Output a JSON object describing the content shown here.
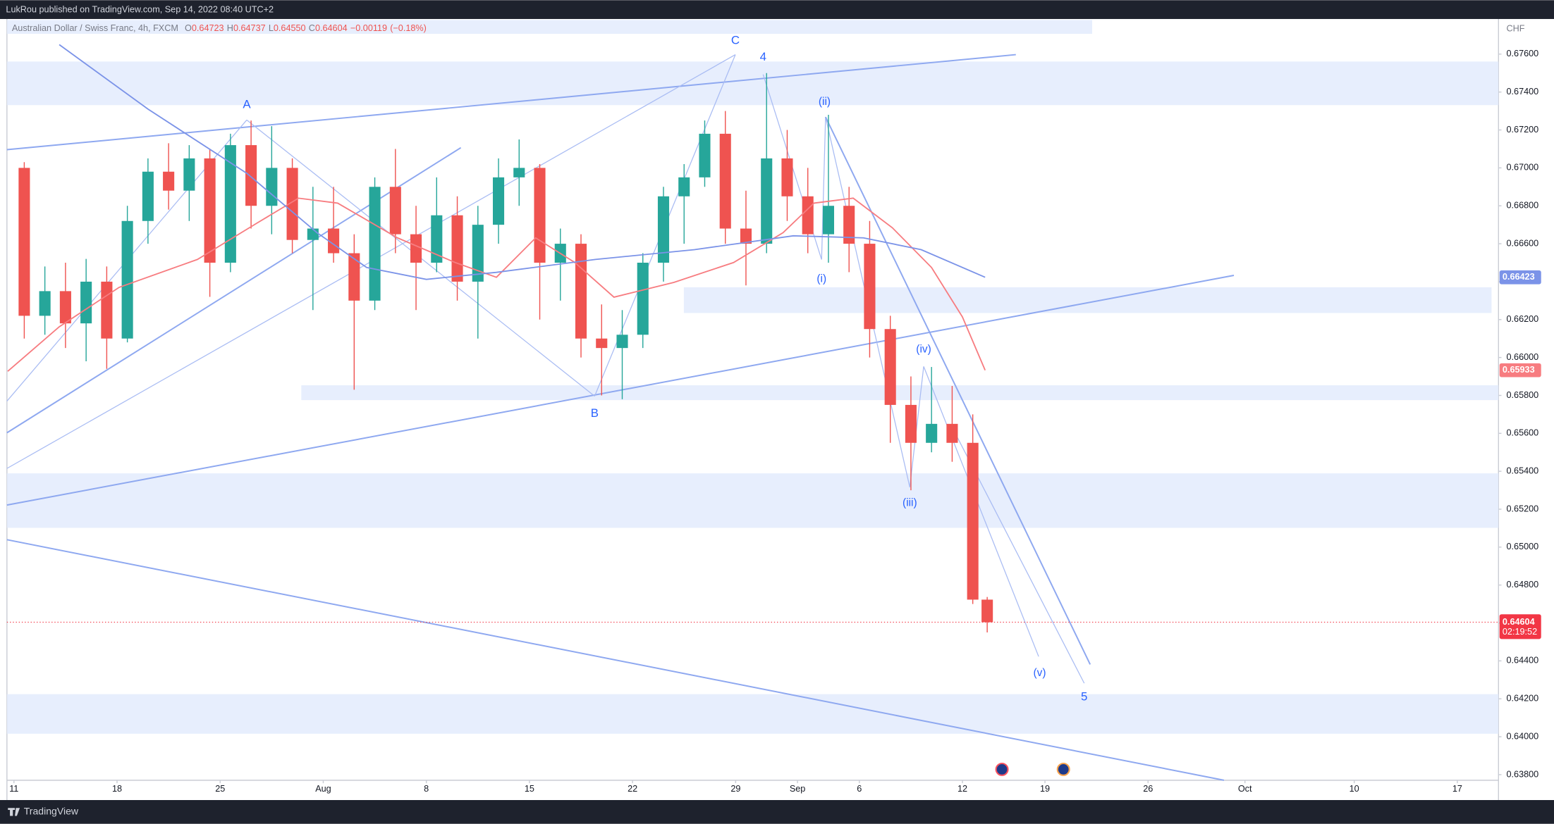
{
  "header": {
    "publisher": "LukRou published on TradingView.com, Sep 14, 2022 08:40 UTC+2",
    "footer": "TradingView"
  },
  "chart_data": {
    "type": "candlestick",
    "title": "Australian Dollar / Swiss Franc, 4h, FXCM",
    "ohlc_legend": [
      {
        "key": "O",
        "value": 0.64723,
        "label": "0.64723"
      },
      {
        "key": "H",
        "value": 0.64737,
        "label": "0.64737"
      },
      {
        "key": "L",
        "value": 0.6455,
        "label": "0.64550"
      },
      {
        "key": "C",
        "value": 0.64604,
        "label": "0.64604"
      }
    ],
    "change": {
      "value": -0.00119,
      "label": "−0.00119"
    },
    "change_pct": {
      "value": -0.18,
      "label": "(−0.18%)"
    },
    "y_unit": "CHF",
    "up_color": "#26a69a",
    "down_color": "#ef5350",
    "x": [
      0.5,
      1.5,
      2.5,
      3.5,
      4.5,
      5.5,
      6.5,
      7.5,
      8.5,
      9.5,
      10.5,
      11.5,
      12.5,
      13.5,
      14.5,
      15.5,
      16.5,
      17.5,
      18.5,
      19.5,
      20.5,
      21.5,
      22.5,
      23.5,
      24.5,
      25.5,
      26.5,
      27.5,
      28.5,
      29.5,
      30.5,
      31.5,
      32.5,
      33.5,
      34.5,
      35.5,
      36.5,
      37.5,
      38.5,
      39.5,
      40.5,
      41.5,
      42.5,
      43.5,
      44.5,
      45.5,
      46.5,
      47.2
    ],
    "open": [
      0.67,
      0.6622,
      0.6635,
      0.6618,
      0.664,
      0.661,
      0.6672,
      0.6698,
      0.6688,
      0.6705,
      0.665,
      0.6712,
      0.668,
      0.67,
      0.6662,
      0.6668,
      0.6655,
      0.663,
      0.669,
      0.6665,
      0.665,
      0.6675,
      0.664,
      0.667,
      0.6695,
      0.67,
      0.665,
      0.666,
      0.661,
      0.6605,
      0.6612,
      0.665,
      0.6685,
      0.6695,
      0.6718,
      0.6668,
      0.666,
      0.6705,
      0.6685,
      0.6665,
      0.668,
      0.666,
      0.6615,
      0.6575,
      0.6555,
      0.6565,
      0.6555,
      0.64723
    ],
    "high": [
      0.6703,
      0.6648,
      0.665,
      0.6652,
      0.6648,
      0.668,
      0.6705,
      0.6713,
      0.6712,
      0.671,
      0.6718,
      0.6725,
      0.6722,
      0.6705,
      0.669,
      0.669,
      0.6665,
      0.6695,
      0.671,
      0.668,
      0.6695,
      0.6685,
      0.668,
      0.6705,
      0.6715,
      0.6702,
      0.6668,
      0.6665,
      0.6628,
      0.6625,
      0.6655,
      0.669,
      0.6702,
      0.6725,
      0.673,
      0.6688,
      0.675,
      0.672,
      0.67,
      0.6728,
      0.669,
      0.6672,
      0.6622,
      0.659,
      0.6595,
      0.6585,
      0.657,
      0.64737
    ],
    "low": [
      0.661,
      0.6612,
      0.6605,
      0.6598,
      0.6594,
      0.6608,
      0.666,
      0.6678,
      0.6672,
      0.6632,
      0.6645,
      0.6668,
      0.6665,
      0.6655,
      0.6625,
      0.665,
      0.6583,
      0.6625,
      0.6655,
      0.6625,
      0.6645,
      0.663,
      0.661,
      0.666,
      0.668,
      0.662,
      0.663,
      0.66,
      0.658,
      0.6578,
      0.6605,
      0.664,
      0.666,
      0.669,
      0.666,
      0.6638,
      0.6655,
      0.6672,
      0.6655,
      0.665,
      0.6645,
      0.66,
      0.6555,
      0.653,
      0.655,
      0.6545,
      0.647,
      0.6455
    ],
    "close": [
      0.6622,
      0.6635,
      0.6618,
      0.664,
      0.661,
      0.6672,
      0.6698,
      0.6688,
      0.6705,
      0.665,
      0.6712,
      0.668,
      0.67,
      0.6662,
      0.6668,
      0.6655,
      0.663,
      0.669,
      0.6665,
      0.665,
      0.6675,
      0.664,
      0.667,
      0.6695,
      0.67,
      0.665,
      0.666,
      0.661,
      0.6605,
      0.6612,
      0.665,
      0.6685,
      0.6695,
      0.6718,
      0.6668,
      0.666,
      0.6705,
      0.6685,
      0.6665,
      0.668,
      0.666,
      0.6615,
      0.6575,
      0.6555,
      0.6565,
      0.6555,
      0.64723,
      0.64604
    ],
    "series": [
      {
        "color": "#f77c80",
        "x": [
          -0.3,
          2.2,
          5.1,
          8.9,
          11.8,
          13.8,
          15.7,
          18.6,
          21.4,
          23.4,
          25.3,
          27.2,
          29.1,
          32.0,
          34.9,
          37.3,
          38.8,
          40.7,
          42.6,
          44.5,
          46.0,
          47.1
        ],
        "values": [
          0.65927,
          0.66162,
          0.6637,
          0.66517,
          0.6671,
          0.6684,
          0.66814,
          0.66631,
          0.66501,
          0.66423,
          0.66631,
          0.66501,
          0.66318,
          0.66396,
          0.66501,
          0.66658,
          0.66814,
          0.6684,
          0.66684,
          0.66475,
          0.66214,
          0.65933
        ],
        "last_label": {
          "value": 0.65933,
          "label": "0.65933"
        }
      },
      {
        "color": "#7b93e8",
        "x": [
          2.2,
          6.5,
          11.3,
          14.7,
          17.1,
          20.0,
          23.4,
          28.2,
          33.0,
          37.8,
          41.2,
          44.0,
          47.1
        ],
        "values": [
          0.6765,
          0.6731,
          0.66971,
          0.66658,
          0.66475,
          0.66412,
          0.66449,
          0.66517,
          0.66569,
          0.66642,
          0.66631,
          0.66569,
          0.66423
        ],
        "last_label": {
          "value": 0.66423,
          "label": "0.66423"
        }
      }
    ],
    "current_price": {
      "value": 0.64604,
      "label": "0.64604",
      "color": "#f23645"
    },
    "countdown": "02:19:52",
    "annotations": [
      "C",
      "4",
      "A",
      "B",
      "(ii)",
      "(i)",
      "(iv)",
      "(iii)",
      "(v)",
      "5"
    ],
    "xlim": [
      -0.34,
      71.9
    ],
    "ylim": [
      0.6376,
      0.6778
    ],
    "xticks": [
      {
        "value": 0,
        "label": "11"
      },
      {
        "value": 5,
        "label": "18"
      },
      {
        "value": 10,
        "label": "25"
      },
      {
        "value": 15,
        "label": "Aug"
      },
      {
        "value": 20,
        "label": "8"
      },
      {
        "value": 25,
        "label": "15"
      },
      {
        "value": 30,
        "label": "22"
      },
      {
        "value": 35,
        "label": "29"
      },
      {
        "value": 38,
        "label": "Sep"
      },
      {
        "value": 41,
        "label": "6"
      },
      {
        "value": 46,
        "label": "12"
      },
      {
        "value": 50,
        "label": "19"
      },
      {
        "value": 55,
        "label": "26"
      },
      {
        "value": 59.7,
        "label": "Oct"
      },
      {
        "value": 65,
        "label": "10"
      },
      {
        "value": 70,
        "label": "17"
      }
    ],
    "yticks": [
      {
        "value": 0.638,
        "label": "0.63800"
      },
      {
        "value": 0.64,
        "label": "0.64000"
      },
      {
        "value": 0.642,
        "label": "0.64200"
      },
      {
        "value": 0.644,
        "label": "0.64400"
      },
      {
        "value": 0.646,
        "label": "0.64600"
      },
      {
        "value": 0.648,
        "label": "0.64800"
      },
      {
        "value": 0.65,
        "label": "0.65000"
      },
      {
        "value": 0.652,
        "label": "0.65200"
      },
      {
        "value": 0.654,
        "label": "0.65400"
      },
      {
        "value": 0.656,
        "label": "0.65600"
      },
      {
        "value": 0.658,
        "label": "0.65800"
      },
      {
        "value": 0.66,
        "label": "0.66000"
      },
      {
        "value": 0.662,
        "label": "0.66200"
      },
      {
        "value": 0.664,
        "label": "0.66400"
      },
      {
        "value": 0.666,
        "label": "0.66600"
      },
      {
        "value": 0.668,
        "label": "0.66800"
      },
      {
        "value": 0.67,
        "label": "0.67000"
      },
      {
        "value": 0.672,
        "label": "0.67200"
      },
      {
        "value": 0.674,
        "label": "0.67400"
      },
      {
        "value": 0.676,
        "label": "0.67600"
      }
    ],
    "grid": false
  }
}
